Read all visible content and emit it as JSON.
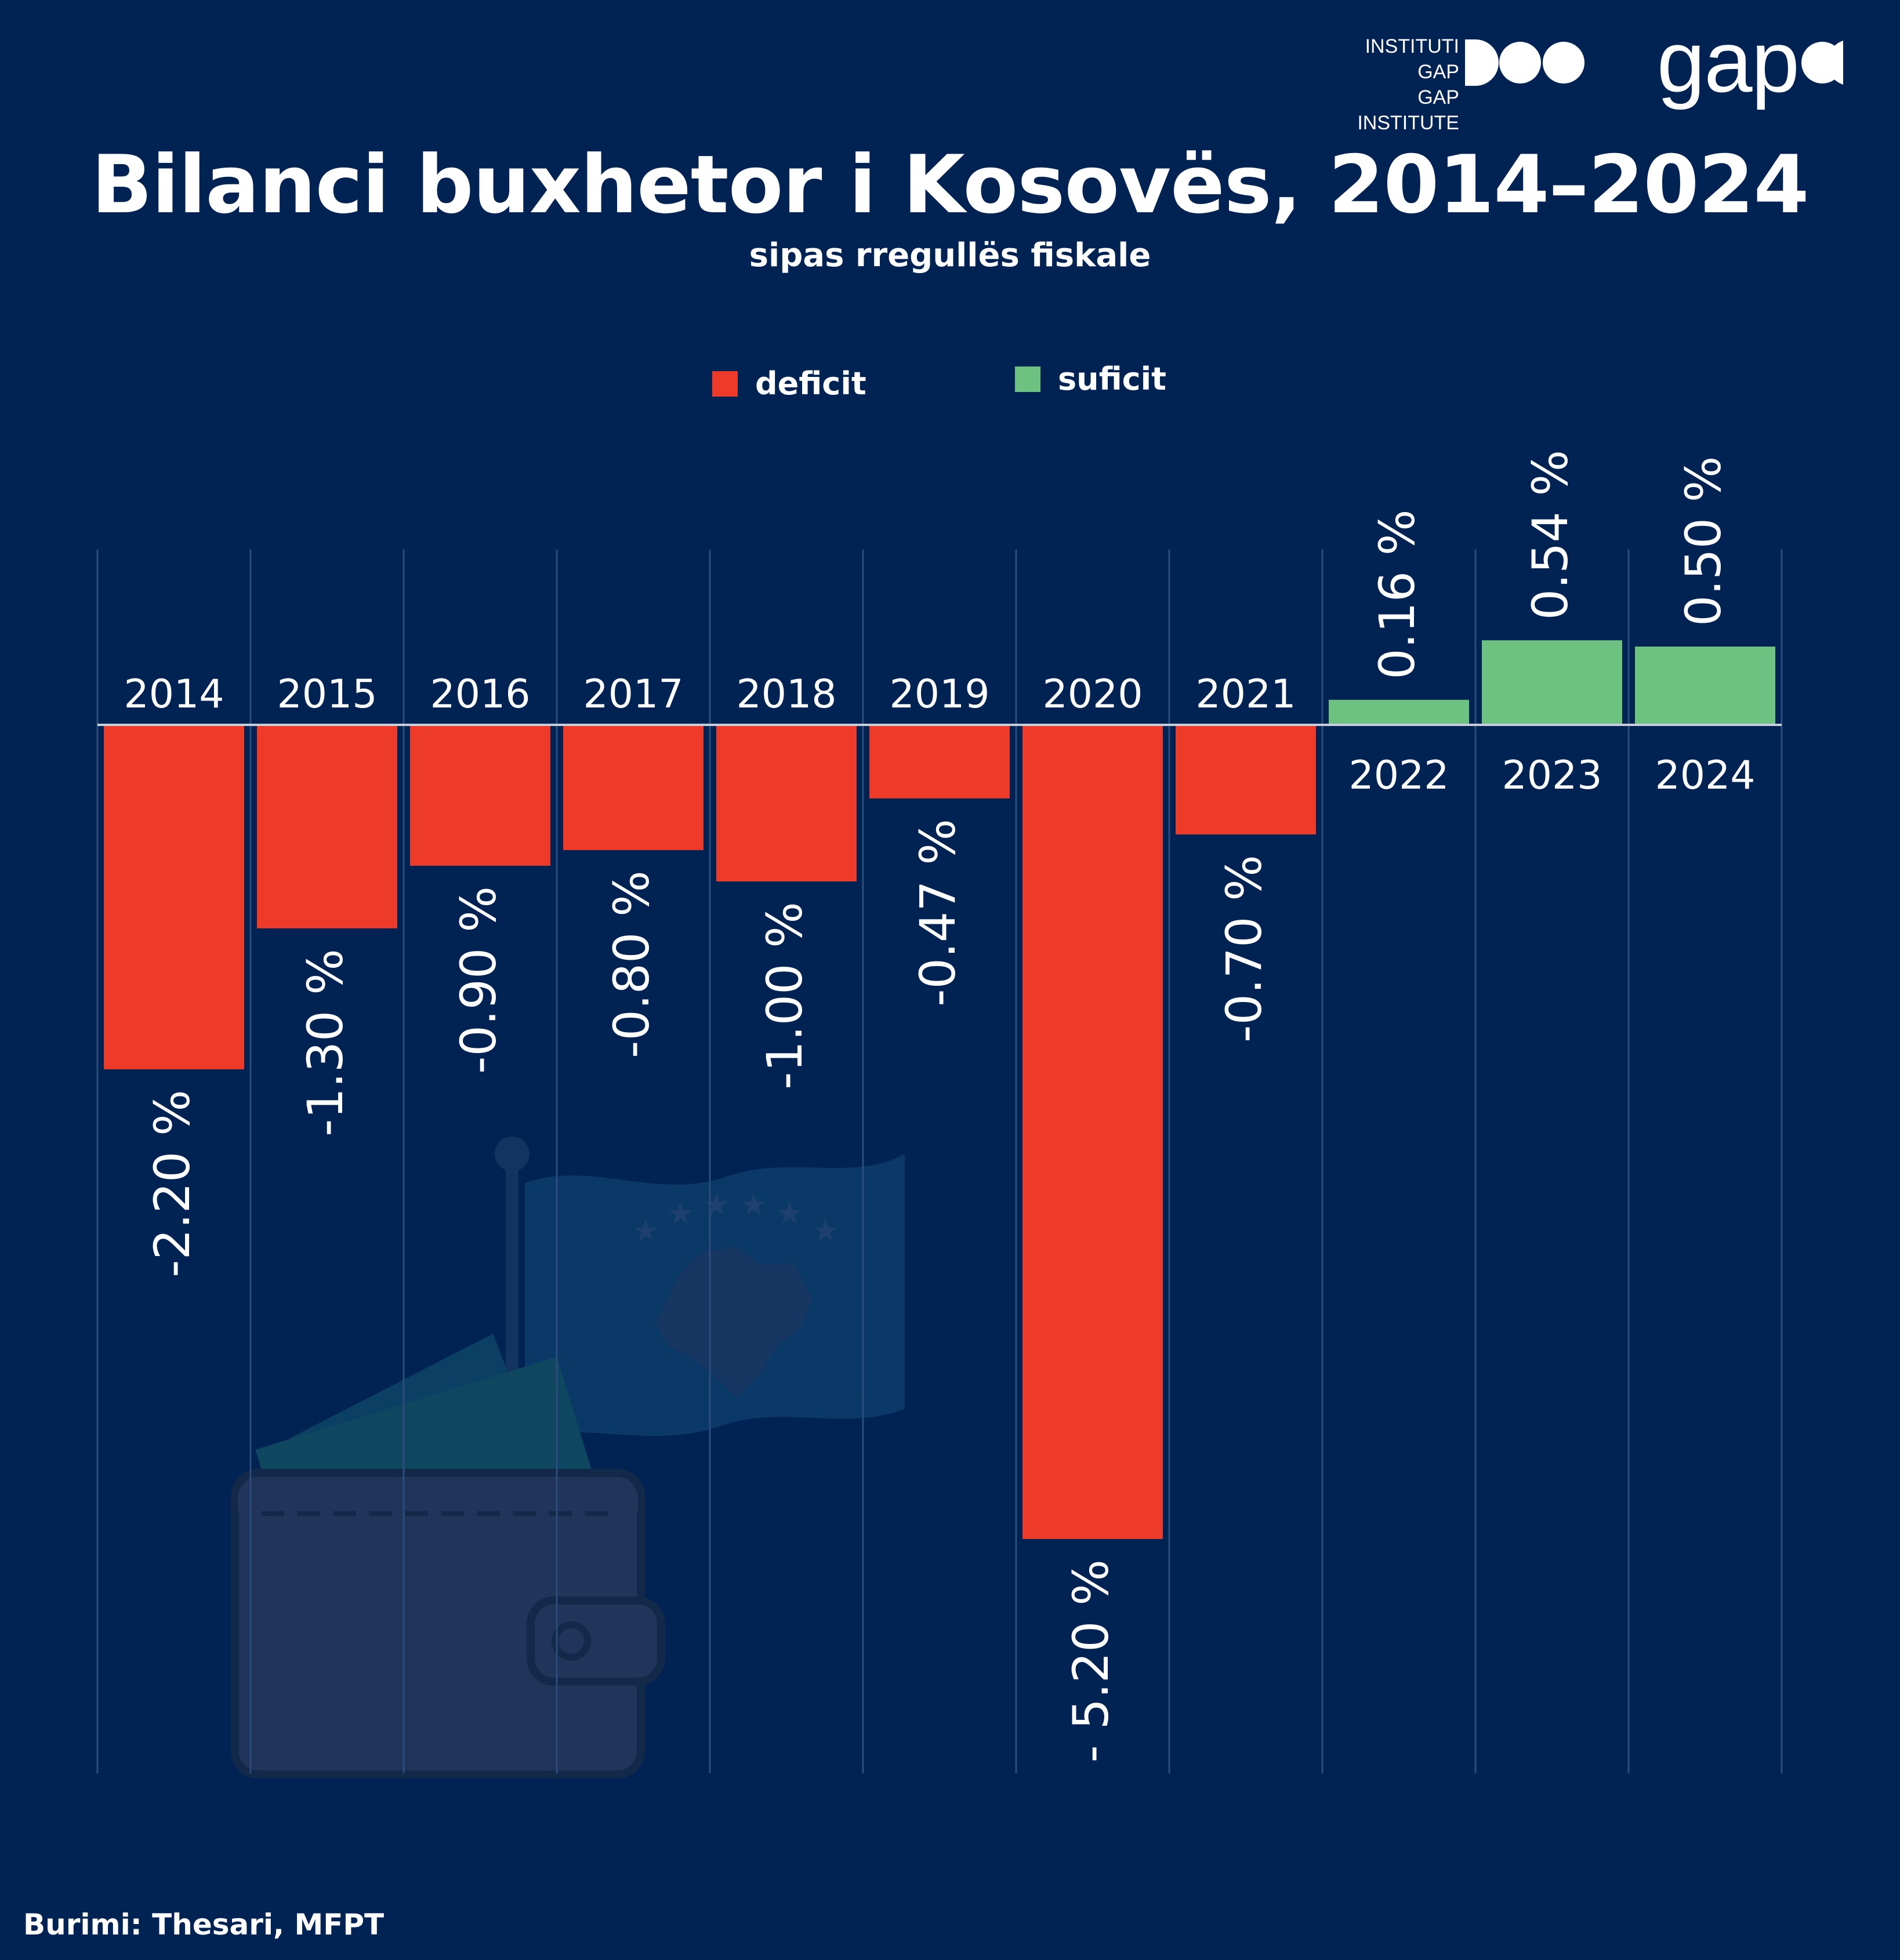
{
  "title": "Bilanci buxhetor i Kosovës, 2014–2024",
  "subtitle": "sipas rregullës fiskale",
  "source": "Burimi: Thesari, MFPT",
  "logo": {
    "line1": "INSTITUTI GAP",
    "line2": "GAP INSTITUTE",
    "wordmark": "gap"
  },
  "legend": [
    {
      "label": "deficit",
      "color": "#ee3a29"
    },
    {
      "label": "suficit",
      "color": "#6dc181"
    }
  ],
  "colors": {
    "background": "#012353",
    "deficit": "#ee3a29",
    "surplus": "#6dc181",
    "gridline": "#2c4c7c",
    "illustration": "#183a68"
  },
  "chart_data": {
    "type": "bar",
    "categories": [
      "2014",
      "2015",
      "2016",
      "2017",
      "2018",
      "2019",
      "2020",
      "2021",
      "2022",
      "2023",
      "2024"
    ],
    "values": [
      -2.2,
      -1.3,
      -0.9,
      -0.8,
      -1.0,
      -0.47,
      -5.2,
      -0.7,
      0.16,
      0.54,
      0.5
    ],
    "value_labels": [
      "-2.20 %",
      "-1.30 %",
      "-0.90 %",
      "-0.80 %",
      "-1.00 %",
      "-0.47 %",
      "- 5.20 %",
      "-0.70 %",
      "0.16 %",
      "0.54 %",
      "0.50 %"
    ],
    "title": "Bilanci buxhetor i Kosovës, 2014–2024",
    "xlabel": "",
    "ylabel": "",
    "ylim": [
      -5.2,
      0.54
    ],
    "grid": true,
    "legend_position": "top-center"
  }
}
